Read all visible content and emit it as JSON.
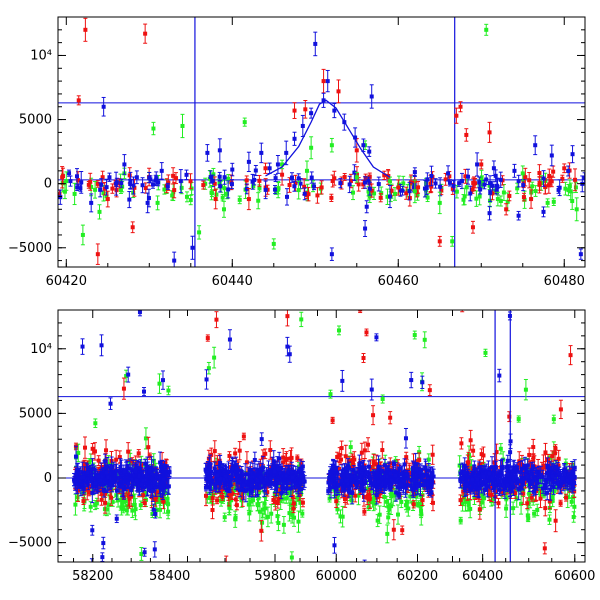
{
  "colors": {
    "red": "#ee1111",
    "green": "#22ee22",
    "blue": "#1111dd",
    "frame": "#000000"
  },
  "chart_data": [
    {
      "type": "scatter",
      "panel": "top",
      "xlim": [
        60419,
        60482.5
      ],
      "ylim": [
        -6500,
        13000
      ],
      "x_ticks": [
        60420,
        60440,
        60460,
        60480
      ],
      "x_tick_labels": [
        "60420",
        "60440",
        "60460",
        "60480"
      ],
      "y_ticks": [
        -5000,
        0,
        5000,
        10000
      ],
      "y_tick_labels": [
        "−5000",
        "0",
        "5000",
        "10⁴"
      ],
      "hlines": [
        300,
        6300
      ],
      "vlines": [
        60435.5,
        60466.8
      ],
      "model_curve": {
        "color": "blue",
        "points": [
          [
            60444,
            600
          ],
          [
            60446,
            1300
          ],
          [
            60448,
            2900
          ],
          [
            60449.5,
            4800
          ],
          [
            60450.5,
            6200
          ],
          [
            60451.3,
            6500
          ],
          [
            60452.5,
            5900
          ],
          [
            60454,
            4300
          ],
          [
            60455.5,
            2700
          ],
          [
            60457,
            1300
          ],
          [
            60459,
            500
          ]
        ]
      },
      "series": [
        {
          "color": "red",
          "points": [
            [
              60422.3,
              12000
            ],
            [
              60423.8,
              -5500
            ],
            [
              60421.5,
              6500
            ],
            [
              60429.5,
              11700
            ],
            [
              60428,
              -3400
            ],
            [
              60448.8,
              5800
            ],
            [
              60451,
              8000
            ],
            [
              60452.8,
              7200
            ],
            [
              60447.5,
              5700
            ],
            [
              60467.5,
              6000
            ],
            [
              60467,
              5300
            ],
            [
              60468.2,
              3800
            ],
            [
              60470,
              1500
            ],
            [
              60471,
              4000
            ],
            [
              60473,
              -2000
            ],
            [
              60469,
              -3400
            ],
            [
              60458.8,
              600
            ],
            [
              60462,
              200
            ],
            [
              60442,
              -1200
            ],
            [
              60465,
              -4500
            ],
            [
              60476,
              -1200
            ],
            [
              60480,
              1200
            ],
            [
              60481.3,
              300
            ],
            [
              60478.2,
              600
            ],
            [
              60460,
              -300
            ],
            [
              60455,
              2600
            ],
            [
              60446,
              700
            ],
            [
              60444,
              1200
            ],
            [
              60438,
              -1200
            ],
            [
              60433,
              -500
            ],
            [
              60425,
              -1200
            ],
            [
              60419.5,
              500
            ]
          ]
        },
        {
          "color": "green",
          "points": [
            [
              60470.6,
              12000
            ],
            [
              60466.5,
              -4500
            ],
            [
              60430.5,
              4300
            ],
            [
              60434,
              4500
            ],
            [
              60436,
              -3800
            ],
            [
              60441.5,
              4800
            ],
            [
              60445,
              -4700
            ],
            [
              60448,
              -500
            ],
            [
              60449,
              1000
            ],
            [
              60452,
              3000
            ],
            [
              60455,
              500
            ],
            [
              60459,
              200
            ],
            [
              60462,
              -600
            ],
            [
              60465,
              -1500
            ],
            [
              60468,
              -1000
            ],
            [
              60478,
              -1500
            ],
            [
              60475,
              800
            ],
            [
              60472,
              -1200
            ],
            [
              60456,
              3000
            ],
            [
              60449.5,
              2800
            ],
            [
              60446,
              1500
            ],
            [
              60439,
              -2000
            ],
            [
              60437.5,
              -700
            ],
            [
              60431,
              -1500
            ],
            [
              60427,
              800
            ],
            [
              60424,
              -2200
            ],
            [
              60422,
              -4000
            ],
            [
              60421,
              -800
            ],
            [
              60420,
              200
            ],
            [
              60481.5,
              -2000
            ],
            [
              60480.5,
              -500
            ]
          ]
        },
        {
          "color": "blue",
          "points": [
            [
              60424.5,
              6000
            ],
            [
              60427,
              1500
            ],
            [
              60433,
              -6000
            ],
            [
              60435.2,
              -5000
            ],
            [
              60431.5,
              1000
            ],
            [
              60426,
              0
            ],
            [
              60428.5,
              500
            ],
            [
              60450,
              10900
            ],
            [
              60451.5,
              8000
            ],
            [
              60456.8,
              6800
            ],
            [
              60456.5,
              2500
            ],
            [
              60456.2,
              -1800
            ],
            [
              60456,
              -3500
            ],
            [
              60451,
              6500
            ],
            [
              60452.3,
              5700
            ],
            [
              60453.5,
              4800
            ],
            [
              60454.8,
              3600
            ],
            [
              60455.8,
              3000
            ],
            [
              60449.5,
              5500
            ],
            [
              60448.5,
              4500
            ],
            [
              60447.5,
              3500
            ],
            [
              60446.5,
              2400
            ],
            [
              60445.5,
              1500
            ],
            [
              60444.5,
              1200
            ],
            [
              60443.5,
              2400
            ],
            [
              60442,
              1700
            ],
            [
              60440,
              1100
            ],
            [
              60438.5,
              2600
            ],
            [
              60437,
              2400
            ],
            [
              60452,
              -5500
            ],
            [
              60469.5,
              1500
            ],
            [
              60471,
              -2300
            ],
            [
              60474.5,
              -2500
            ],
            [
              60476.5,
              3000
            ],
            [
              60478.5,
              2200
            ],
            [
              60481,
              2300
            ],
            [
              60482,
              -5500
            ],
            [
              60477.5,
              -2200
            ],
            [
              60474,
              1000
            ],
            [
              60464,
              600
            ],
            [
              60462,
              900
            ],
            [
              60466,
              800
            ],
            [
              60459,
              -1000
            ],
            [
              60420.5,
              200
            ],
            [
              60421.8,
              100
            ],
            [
              60423,
              -1500
            ],
            [
              60425.2,
              500
            ],
            [
              60429.8,
              -1500
            ],
            [
              60433.8,
              200
            ]
          ]
        }
      ]
    },
    {
      "type": "scatter",
      "panel": "bottom",
      "xlim": [
        58080,
        61000
      ],
      "ylim": [
        -6500,
        13000
      ],
      "segments": [
        {
          "x_ticks": [
            58200,
            58400
          ],
          "x_tick_labels": [
            "58200",
            "58400"
          ],
          "xlim": [
            58120,
            58440
          ]
        },
        {
          "x_ticks": [
            59800
          ],
          "x_tick_labels": [
            "59800"
          ],
          "xlim": [
            59630,
            59880
          ]
        },
        {
          "x_ticks": [
            60000,
            60200
          ],
          "x_tick_labels": [
            "60000",
            "60200"
          ],
          "xlim": [
            59960,
            60280
          ]
        },
        {
          "x_ticks": [
            60400,
            60600
          ],
          "x_tick_labels": [
            "60400",
            "60600"
          ],
          "xlim": [
            60340,
            60620
          ]
        }
      ],
      "y_ticks": [
        -5000,
        0,
        5000,
        10000
      ],
      "y_tick_labels": [
        "−5000",
        "0",
        "5000",
        "10⁴"
      ],
      "hlines": [
        0,
        6300
      ],
      "vlines_last_segment": [
        60427,
        60460
      ],
      "data_clusters": [
        {
          "segment": 0,
          "x_range": [
            58150,
            58400
          ],
          "y_center": 0,
          "y_spread": 1800
        },
        {
          "segment": 1,
          "x_range": [
            59660,
            59860
          ],
          "y_center": 0,
          "y_spread": 1800
        },
        {
          "segment": 2,
          "x_range": [
            59980,
            60240
          ],
          "y_center": 0,
          "y_spread": 1800
        },
        {
          "segment": 3,
          "x_range": [
            60350,
            60600
          ],
          "y_center": 0,
          "y_spread": 1800
        }
      ]
    }
  ]
}
